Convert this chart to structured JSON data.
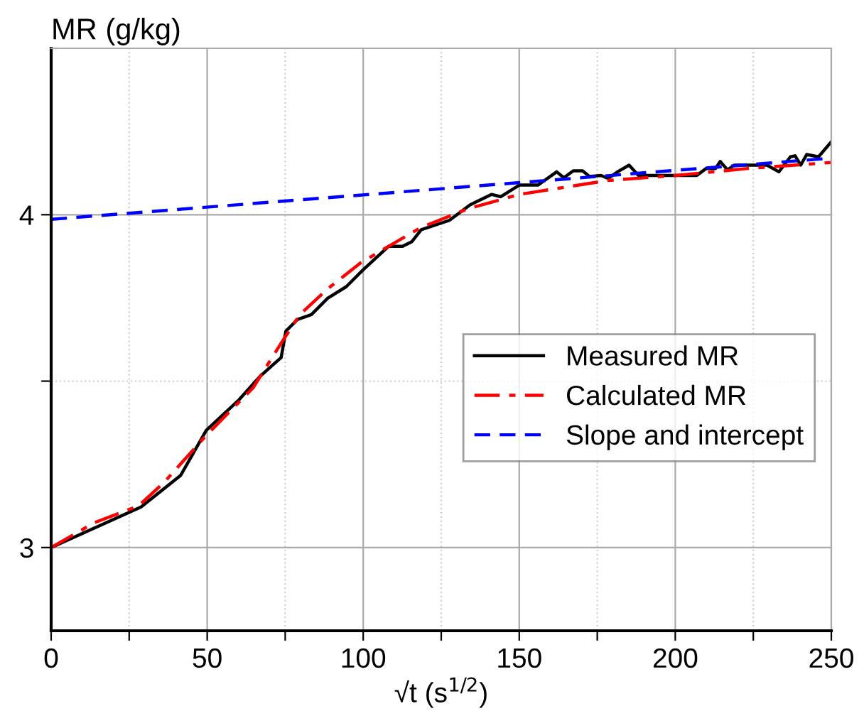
{
  "chart_data": {
    "type": "line",
    "ylabel": "MR (g/kg)",
    "xlabel": "√t (s$^{1/2}$)",
    "xlim": [
      0,
      250
    ],
    "ylim": [
      2.75,
      4.5
    ],
    "xticks": [
      0,
      {
        "value": 25,
        "label": null
      },
      50,
      {
        "value": 75,
        "label": null
      },
      100,
      {
        "value": 125,
        "label": null
      },
      150,
      {
        "value": 175,
        "label": null
      },
      200,
      {
        "value": 225,
        "label": null
      },
      250
    ],
    "yticks": [
      3,
      {
        "value": 3.5,
        "label": null
      },
      4
    ],
    "grid": true,
    "legend": "right",
    "series": [
      {
        "name": "Measured MR",
        "color": "#000000",
        "line_style": "solid",
        "x": [
          0,
          28.8,
          41.5,
          49.7,
          60.2,
          67,
          73.7,
          75.2,
          78.9,
          83.4,
          88.6,
          94.6,
          99.9,
          108.1,
          112.6,
          115.6,
          118.6,
          127.6,
          134.3,
          141.1,
          144.1,
          150,
          156,
          162,
          164.3,
          167.3,
          170.3,
          172.5,
          176.2,
          178.5,
          181.5,
          185.2,
          188.2,
          200.2,
          206.9,
          209.9,
          212.9,
          214.4,
          216.7,
          219,
          229.4,
          233.2,
          236.9,
          238.4,
          240.2,
          242.1,
          245.9,
          250
        ],
        "values": [
          3,
          3.122,
          3.217,
          3.352,
          3.444,
          3.515,
          3.571,
          3.65,
          3.685,
          3.7,
          3.749,
          3.784,
          3.834,
          3.905,
          3.905,
          3.919,
          3.955,
          3.983,
          4.03,
          4.061,
          4.054,
          4.089,
          4.089,
          4.129,
          4.111,
          4.132,
          4.132,
          4.115,
          4.118,
          4.109,
          4.129,
          4.149,
          4.118,
          4.118,
          4.118,
          4.139,
          4.139,
          4.16,
          4.135,
          4.149,
          4.149,
          4.129,
          4.174,
          4.177,
          4.149,
          4.181,
          4.174,
          4.219
        ]
      },
      {
        "name": "Calculated MR",
        "color": "#ff0000",
        "line_style": "dashdot",
        "x": [
          0,
          13.9,
          28,
          36.2,
          49.7,
          64.7,
          73.7,
          79.7,
          88.6,
          99.1,
          108.1,
          118.6,
          133.6,
          150,
          178.5,
          200.2,
          223.4,
          250
        ],
        "values": [
          3,
          3.075,
          3.125,
          3.196,
          3.337,
          3.48,
          3.614,
          3.7,
          3.777,
          3.855,
          3.905,
          3.962,
          4.018,
          4.061,
          4.103,
          4.118,
          4.139,
          4.157
        ]
      },
      {
        "name": "Slope and intercept",
        "color": "#0000ff",
        "line_style": "dashed",
        "x": [
          0,
          250
        ],
        "values": [
          3.986,
          4.17
        ]
      }
    ]
  }
}
